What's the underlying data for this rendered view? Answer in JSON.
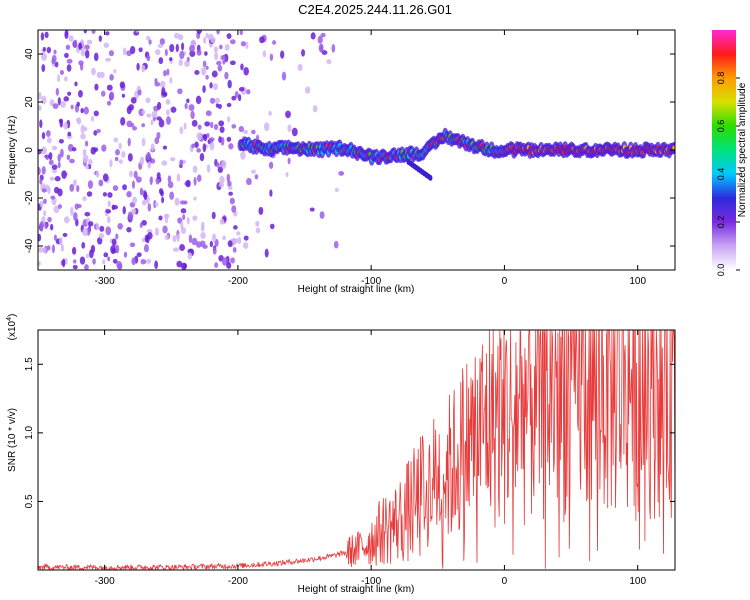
{
  "title": "C2E4.2025.244.11.26.G01",
  "chart_data": [
    {
      "type": "heatmap",
      "xlabel": "Height of straight line (km)",
      "ylabel": "Frequency (Hz)",
      "xlim": [
        -350,
        128
      ],
      "ylim": [
        -50,
        50
      ],
      "xticks": [
        -300,
        -200,
        -100,
        0,
        100
      ],
      "yticks": [
        -40,
        -20,
        0,
        20,
        40
      ],
      "colorbar": {
        "label": "Normalized spectral amplitude",
        "range": [
          0,
          1
        ],
        "ticks": [
          "0.0",
          "0.2",
          "0.4",
          "0.6",
          "0.8"
        ],
        "colors": [
          "#ffffff",
          "#c9a6f5",
          "#7a2be0",
          "#2b2bdc",
          "#00c8ff",
          "#00e37a",
          "#2bdc00",
          "#d8e000",
          "#ff9c00",
          "#ff1a1a",
          "#ff2ad6"
        ]
      },
      "signal_trace": {
        "x": [
          -198,
          -180,
          -160,
          -140,
          -120,
          -100,
          -80,
          -60,
          -45,
          -30,
          -10,
          0,
          20,
          40,
          60,
          80,
          100,
          128
        ],
        "y": [
          3,
          0,
          1,
          0,
          1,
          -3,
          -2,
          -1,
          6,
          3,
          0,
          0,
          0,
          0,
          0,
          0,
          0,
          0
        ]
      },
      "grid": false
    },
    {
      "type": "line",
      "xlabel": "Height of straight line (km)",
      "ylabel": "SNR (10 * v/v)",
      "y_multiplier": "(x10",
      "y_multiplier_exp": "4",
      "y_multiplier_close": ")",
      "xlim": [
        -350,
        128
      ],
      "ylim": [
        0,
        1.75
      ],
      "xticks": [
        -300,
        -200,
        -100,
        0,
        100
      ],
      "yticks": [
        "0.5",
        "1.0",
        "1.5"
      ],
      "series": [
        {
          "color": "#e83a3a",
          "x": [
            -350,
            -300,
            -250,
            -200,
            -170,
            -150,
            -130,
            -110,
            -100,
            -90,
            -80,
            -70,
            -60,
            -50,
            -40,
            -30,
            -20,
            -10,
            0,
            10,
            20,
            30,
            40,
            50,
            60,
            70,
            80,
            90,
            100,
            110,
            128
          ],
          "y": [
            0.02,
            0.02,
            0.02,
            0.03,
            0.05,
            0.07,
            0.1,
            0.15,
            0.22,
            0.3,
            0.35,
            0.45,
            0.55,
            0.7,
            0.75,
            0.9,
            1.0,
            1.1,
            1.15,
            1.2,
            1.25,
            1.3,
            1.35,
            1.4,
            1.45,
            1.4,
            1.4,
            1.45,
            1.4,
            1.45,
            1.5
          ]
        }
      ],
      "grid": false
    }
  ]
}
